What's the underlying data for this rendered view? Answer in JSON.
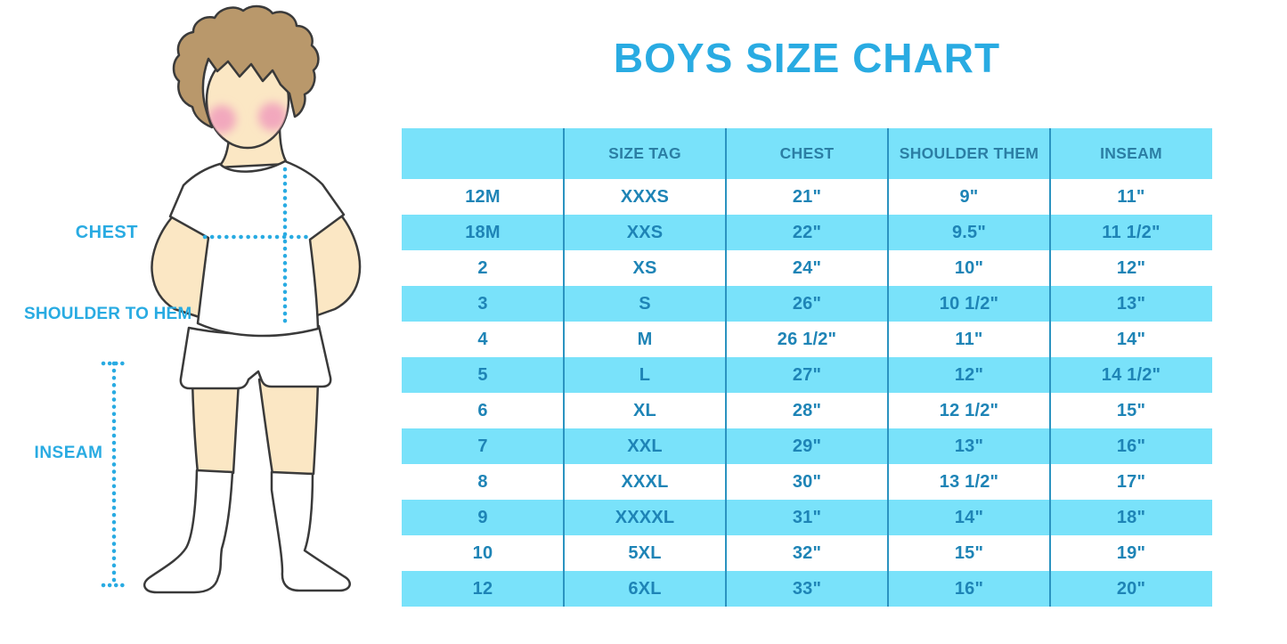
{
  "title": "BOYS SIZE CHART",
  "figure": {
    "labels": [
      {
        "id": "chest",
        "text": "CHEST"
      },
      {
        "id": "shoulder_to_hem",
        "text": "SHOULDER TO HEM"
      },
      {
        "id": "inseam",
        "text": "INSEAM"
      }
    ]
  },
  "chart_data": {
    "type": "table",
    "title": "BOYS SIZE CHART",
    "headers": [
      "",
      "SIZE TAG",
      "CHEST",
      "SHOULDER THEM",
      "INSEAM"
    ],
    "rows": [
      [
        "12M",
        "XXXS",
        "21\"",
        "9\"",
        "11\""
      ],
      [
        "18M",
        "XXS",
        "22\"",
        "9.5\"",
        "11 1/2\""
      ],
      [
        "2",
        "XS",
        "24\"",
        "10\"",
        "12\""
      ],
      [
        "3",
        "S",
        "26\"",
        "10 1/2\"",
        "13\""
      ],
      [
        "4",
        "M",
        "26 1/2\"",
        "11\"",
        "14\""
      ],
      [
        "5",
        "L",
        "27\"",
        "12\"",
        "14 1/2\""
      ],
      [
        "6",
        "XL",
        "28\"",
        "12 1/2\"",
        "15\""
      ],
      [
        "7",
        "XXL",
        "29\"",
        "13\"",
        "16\""
      ],
      [
        "8",
        "XXXL",
        "30\"",
        "13 1/2\"",
        "17\""
      ],
      [
        "9",
        "XXXXL",
        "31\"",
        "14\"",
        "18\""
      ],
      [
        "10",
        "5XL",
        "32\"",
        "15\"",
        "19\""
      ],
      [
        "12",
        "6XL",
        "33\"",
        "16\"",
        "20\""
      ]
    ],
    "layout": {
      "banded_rows": true,
      "band_start_row_index": 1,
      "columns": 5
    }
  },
  "colors": {
    "accent_blue": "#29ABE2",
    "table_band": "#79E2FA",
    "table_ink": "#1E84B6",
    "header_ink": "#2B7EA4",
    "divider": "#2B93C0",
    "skin": "#FBE7C4",
    "hair": "#B9986B",
    "cheek": "#F2A8BD",
    "outline": "#3A3A3A"
  }
}
